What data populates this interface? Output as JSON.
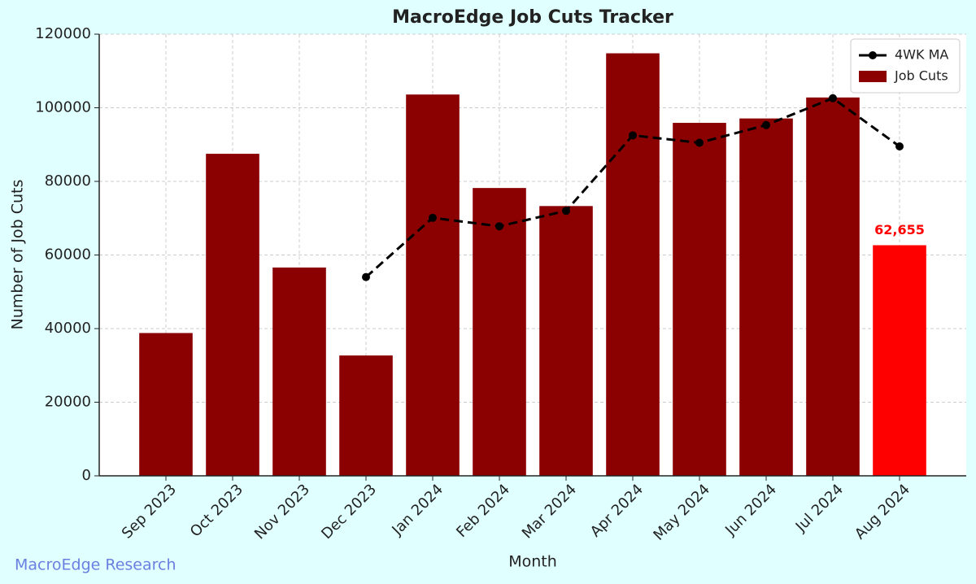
{
  "chart_data": {
    "type": "bar",
    "title": "MacroEdge Job Cuts Tracker",
    "x_label": "Month",
    "y_label": "Number of Job Cuts",
    "watermark": "MacroEdge Research",
    "categories": [
      "Sep 2023",
      "Oct 2023",
      "Nov 2023",
      "Dec 2023",
      "Jan 2024",
      "Feb 2024",
      "Mar 2024",
      "Apr 2024",
      "May 2024",
      "Jun 2024",
      "Jul 2024",
      "Aug 2024"
    ],
    "series": [
      {
        "name": "4WK MA",
        "type": "line",
        "color": "#000000",
        "values": [
          null,
          null,
          null,
          54000,
          70100,
          67800,
          72000,
          92500,
          90500,
          95300,
          102600,
          89500
        ]
      },
      {
        "name": "Job Cuts",
        "type": "bar",
        "color": "#8b0000",
        "colors": [
          "#8b0000",
          "#8b0000",
          "#8b0000",
          "#8b0000",
          "#8b0000",
          "#8b0000",
          "#8b0000",
          "#8b0000",
          "#8b0000",
          "#8b0000",
          "#8b0000",
          "#ff0000"
        ],
        "values": [
          38800,
          87500,
          56600,
          32700,
          103600,
          78200,
          73300,
          114800,
          95900,
          97100,
          102800,
          62655
        ],
        "value_labels": [
          null,
          null,
          null,
          null,
          null,
          null,
          null,
          null,
          null,
          null,
          null,
          "62,655"
        ]
      }
    ],
    "ylim": [
      0,
      120000
    ],
    "yticks": [
      0,
      20000,
      40000,
      60000,
      80000,
      100000,
      120000
    ],
    "grid": true,
    "legend": "upper right"
  }
}
